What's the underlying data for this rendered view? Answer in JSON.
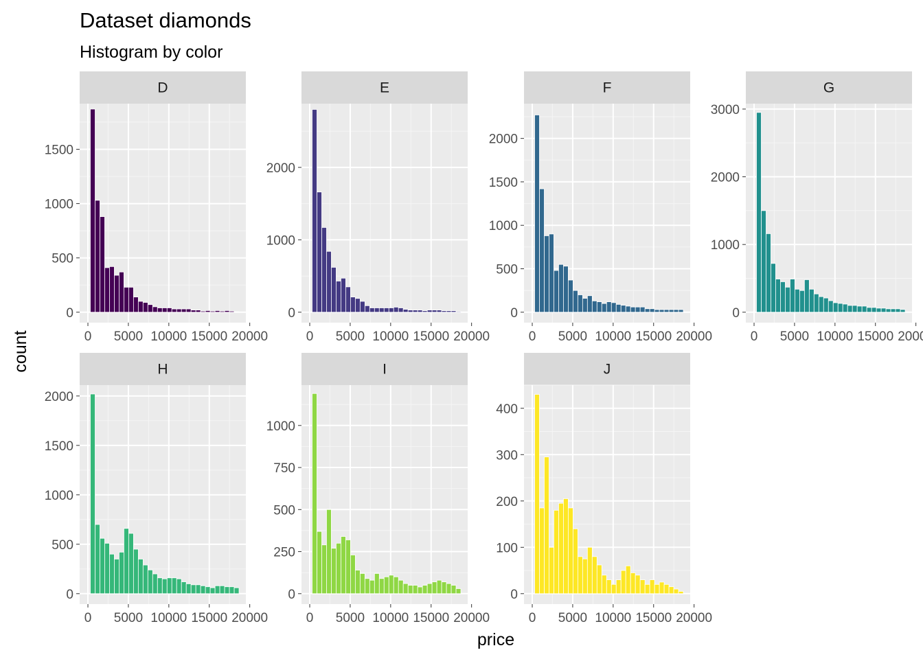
{
  "title": "Dataset diamonds",
  "subtitle": "Histogram by color",
  "x_axis_label": "price",
  "y_axis_label": "count",
  "chart_data": {
    "type": "bar",
    "title": "Dataset diamonds",
    "subtitle": "Histogram by color",
    "xlabel": "price",
    "ylabel": "count",
    "facet_by": "color",
    "grid": true,
    "x_ticks": [
      "0",
      "5000",
      "10000",
      "15000",
      "20000"
    ],
    "bin_centers": [
      593,
      1186,
      1779,
      2371,
      2964,
      3557,
      4150,
      4743,
      5336,
      5929,
      6522,
      7114,
      7707,
      8300,
      8893,
      9486,
      10079,
      10671,
      11264,
      11857,
      12450,
      13043,
      13636,
      14229,
      14821,
      15414,
      16007,
      16600,
      17193,
      17786,
      18379
    ],
    "panels": [
      {
        "name": "D",
        "color": "#440154",
        "ylim": [
          0,
          1920
        ],
        "y_ticks": [
          0,
          500,
          1000,
          1500
        ],
        "values": [
          1870,
          1030,
          880,
          410,
          420,
          340,
          370,
          230,
          230,
          140,
          100,
          90,
          70,
          50,
          40,
          40,
          40,
          30,
          30,
          30,
          30,
          20,
          20,
          10,
          15,
          10,
          15,
          10,
          15,
          10,
          5
        ]
      },
      {
        "name": "E",
        "color": "#443A83",
        "ylim": [
          0,
          2880
        ],
        "y_ticks": [
          0,
          1000,
          2000
        ],
        "values": [
          2800,
          1660,
          1170,
          840,
          620,
          430,
          470,
          350,
          210,
          190,
          150,
          90,
          60,
          60,
          60,
          60,
          60,
          70,
          60,
          40,
          30,
          30,
          30,
          20,
          30,
          30,
          30,
          20,
          20,
          20,
          10
        ]
      },
      {
        "name": "F",
        "color": "#31688E",
        "ylim": [
          0,
          2400
        ],
        "y_ticks": [
          0,
          500,
          1000,
          1500,
          2000
        ],
        "values": [
          2270,
          1420,
          880,
          900,
          480,
          550,
          530,
          370,
          250,
          200,
          160,
          190,
          130,
          120,
          100,
          120,
          110,
          90,
          80,
          70,
          60,
          60,
          60,
          40,
          40,
          30,
          30,
          30,
          30,
          30,
          30
        ]
      },
      {
        "name": "G",
        "color": "#21908D",
        "ylim": [
          0,
          3080
        ],
        "y_ticks": [
          0,
          1000,
          2000,
          3000
        ],
        "values": [
          2950,
          1500,
          1160,
          720,
          490,
          450,
          370,
          490,
          340,
          320,
          480,
          340,
          270,
          230,
          210,
          170,
          140,
          130,
          120,
          100,
          100,
          90,
          90,
          70,
          70,
          60,
          60,
          50,
          50,
          50,
          40
        ]
      },
      {
        "name": "H",
        "color": "#35B779",
        "ylim": [
          0,
          2110
        ],
        "y_ticks": [
          0,
          500,
          1000,
          1500,
          2000
        ],
        "values": [
          2020,
          700,
          560,
          510,
          400,
          350,
          420,
          660,
          610,
          450,
          350,
          290,
          240,
          200,
          160,
          150,
          160,
          160,
          150,
          120,
          100,
          90,
          90,
          80,
          70,
          60,
          80,
          80,
          70,
          70,
          60
        ]
      },
      {
        "name": "I",
        "color": "#8FD744",
        "ylim": [
          0,
          1240
        ],
        "y_ticks": [
          0,
          250,
          500,
          750,
          1000
        ],
        "values": [
          1190,
          370,
          290,
          500,
          270,
          300,
          340,
          320,
          230,
          140,
          120,
          90,
          80,
          120,
          90,
          100,
          110,
          100,
          80,
          60,
          50,
          50,
          40,
          50,
          60,
          70,
          80,
          70,
          60,
          50,
          30
        ]
      },
      {
        "name": "J",
        "color": "#FDE725",
        "ylim": [
          0,
          450
        ],
        "y_ticks": [
          0,
          100,
          200,
          300,
          400
        ],
        "values": [
          430,
          185,
          295,
          100,
          180,
          195,
          205,
          185,
          140,
          80,
          75,
          100,
          80,
          62,
          40,
          30,
          20,
          30,
          50,
          60,
          45,
          40,
          30,
          20,
          30,
          20,
          25,
          20,
          15,
          10,
          5
        ]
      }
    ]
  }
}
